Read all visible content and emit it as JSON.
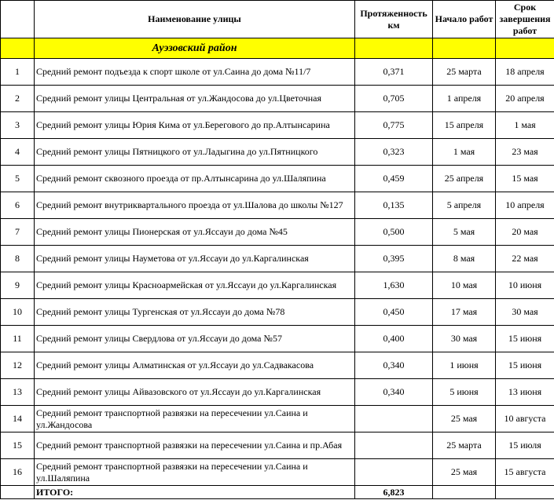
{
  "headers": {
    "num": "",
    "name": "Наименование улицы",
    "length": "Протяженность км",
    "start": "Начало работ",
    "end": "Срок завершения работ"
  },
  "district": "Ауэзовский район",
  "rows": [
    {
      "n": "1",
      "name": "Средний ремонт подъезда к спорт школе от ул.Саина до дома №11/7",
      "len": "0,371",
      "start": "25 марта",
      "end": "18 апреля"
    },
    {
      "n": "2",
      "name": "Средний ремонт улицы Центральная от ул.Жандосова до ул.Цветочная",
      "len": "0,705",
      "start": "1 апреля",
      "end": "20 апреля"
    },
    {
      "n": "3",
      "name": "Средний ремонт улицы Юрия Кима от ул.Берегового до пр.Алтынсарина",
      "len": "0,775",
      "start": "15 апреля",
      "end": "1 мая"
    },
    {
      "n": "4",
      "name": "Средний ремонт улицы Пятницкого от ул.Ладыгина до ул.Пятницкого",
      "len": "0,323",
      "start": "1 мая",
      "end": "23 мая"
    },
    {
      "n": "5",
      "name": "Средний ремонт сквозного проезда от пр.Алтынсарина до ул.Шаляпина",
      "len": "0,459",
      "start": "25 апреля",
      "end": "15 мая"
    },
    {
      "n": "6",
      "name": "Средний ремонт внутриквартального проезда от ул.Шалова до школы №127",
      "len": "0,135",
      "start": "5 апреля",
      "end": "10 апреля"
    },
    {
      "n": "7",
      "name": "Средний ремонт улицы Пионерская от ул.Яссауи до дома №45",
      "len": "0,500",
      "start": "5  мая",
      "end": "20 мая"
    },
    {
      "n": "8",
      "name": "Средний ремонт улицы Науметова от ул.Яссауи до ул.Каргалинская",
      "len": "0,395",
      "start": "8 мая",
      "end": "22 мая"
    },
    {
      "n": "9",
      "name": "Средний ремонт улицы Красноармейская от ул.Яссауи до ул.Каргалинская",
      "len": "1,630",
      "start": "10 мая",
      "end": "10 июня"
    },
    {
      "n": "10",
      "name": "Средний ремонт улицы Тургенская от ул.Яссауи до дома №78",
      "len": "0,450",
      "start": "17 мая",
      "end": "30 мая"
    },
    {
      "n": "11",
      "name": "Средний ремонт улицы Свердлова от ул.Яссауи до дома №57",
      "len": "0,400",
      "start": "30 мая",
      "end": "15 июня"
    },
    {
      "n": "12",
      "name": "Средний ремонт улицы Алматинская от ул.Яссауи до ул.Садвакасова",
      "len": "0,340",
      "start": "1 июня",
      "end": "15 июня"
    },
    {
      "n": "13",
      "name": "Средний ремонт улицы Айвазовского от ул.Яссауи до ул.Каргалинская",
      "len": "0,340",
      "start": "5 июня",
      "end": "13 июня"
    },
    {
      "n": "14",
      "name": "Средний ремонт транспортной развязки на пересечении ул.Саина и ул.Жандосова",
      "len": "",
      "start": "25 мая",
      "end": "10 августа"
    },
    {
      "n": "15",
      "name": "Средний ремонт транспортной развязки на пересечении ул.Саина и пр.Абая",
      "len": "",
      "start": "25 марта",
      "end": "15 июля"
    },
    {
      "n": "16",
      "name": "Средний ремонт транспортной развязки на пересечении ул.Саина и ул.Шаляпина",
      "len": "",
      "start": "25 мая",
      "end": "15 августа"
    }
  ],
  "total": {
    "label": "ИТОГО:",
    "length": "6,823"
  },
  "colors": {
    "district_bg": "#ffff00"
  }
}
